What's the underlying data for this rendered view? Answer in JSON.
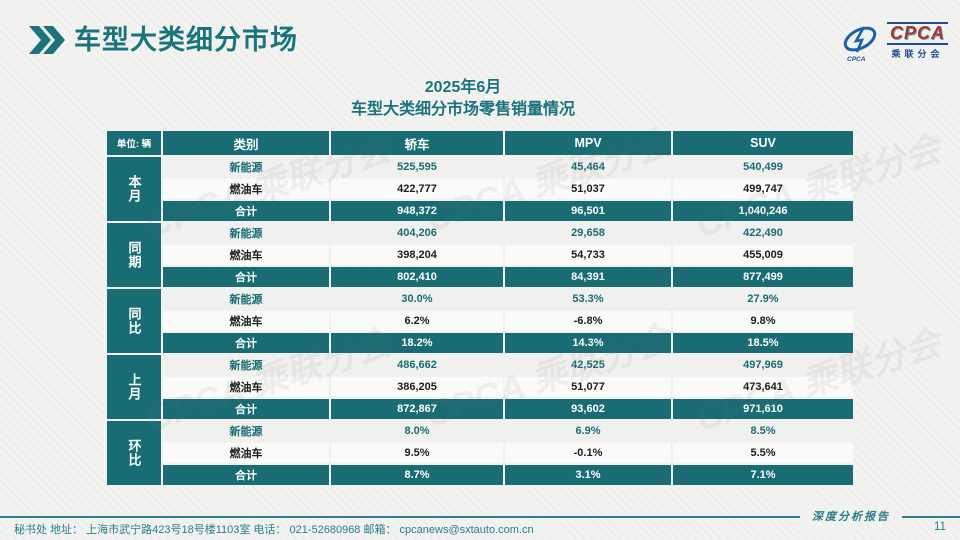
{
  "header": {
    "title": "车型大类细分市场"
  },
  "logo": {
    "acronym": "CPCA",
    "chinese": "乘联分会"
  },
  "subtitle": {
    "line1": "2025年6月",
    "line2": "车型大类细分市场零售销量情况"
  },
  "table": {
    "unit_label": "单位: 辆",
    "columns": [
      "类别",
      "轿车",
      "MPV",
      "SUV"
    ],
    "groups": [
      {
        "label": "本月",
        "rows": [
          {
            "type": "new-energy",
            "cells": [
              "新能源",
              "525,595",
              "45,464",
              "540,499"
            ]
          },
          {
            "type": "fuel",
            "cells": [
              "燃油车",
              "422,777",
              "51,037",
              "499,747"
            ]
          },
          {
            "type": "total",
            "cells": [
              "合计",
              "948,372",
              "96,501",
              "1,040,246"
            ]
          }
        ]
      },
      {
        "label": "同期",
        "rows": [
          {
            "type": "new-energy",
            "cells": [
              "新能源",
              "404,206",
              "29,658",
              "422,490"
            ]
          },
          {
            "type": "fuel",
            "cells": [
              "燃油车",
              "398,204",
              "54,733",
              "455,009"
            ]
          },
          {
            "type": "total",
            "cells": [
              "合计",
              "802,410",
              "84,391",
              "877,499"
            ]
          }
        ]
      },
      {
        "label": "同比",
        "rows": [
          {
            "type": "new-energy",
            "cells": [
              "新能源",
              "30.0%",
              "53.3%",
              "27.9%"
            ]
          },
          {
            "type": "fuel",
            "cells": [
              "燃油车",
              "6.2%",
              "-6.8%",
              "9.8%"
            ]
          },
          {
            "type": "total",
            "cells": [
              "合计",
              "18.2%",
              "14.3%",
              "18.5%"
            ]
          }
        ]
      },
      {
        "label": "上月",
        "rows": [
          {
            "type": "new-energy",
            "cells": [
              "新能源",
              "486,662",
              "42,525",
              "497,969"
            ]
          },
          {
            "type": "fuel",
            "cells": [
              "燃油车",
              "386,205",
              "51,077",
              "473,641"
            ]
          },
          {
            "type": "total",
            "cells": [
              "合计",
              "872,867",
              "93,602",
              "971,610"
            ]
          }
        ]
      },
      {
        "label": "环比",
        "rows": [
          {
            "type": "new-energy",
            "cells": [
              "新能源",
              "8.0%",
              "6.9%",
              "8.5%"
            ]
          },
          {
            "type": "fuel",
            "cells": [
              "燃油车",
              "9.5%",
              "-0.1%",
              "5.5%"
            ]
          },
          {
            "type": "total",
            "cells": [
              "合计",
              "8.7%",
              "3.1%",
              "7.1%"
            ]
          }
        ]
      }
    ]
  },
  "watermark": "CPCA 乘联分会",
  "footer": {
    "contact": "秘书处   地址： 上海市武宁路423号18号楼1103室   电话： 021-52680968    邮箱： cpcanews@sxtauto.com.cn",
    "report_label": "深度分析报告",
    "page_number": "11"
  },
  "colors": {
    "accent_teal": "#1a6c74",
    "title_teal": "#1b737c",
    "footer_teal": "#2a7e87",
    "logo_navy": "#1d4f91",
    "logo_red": "#9e3a2b"
  },
  "chart_data": {
    "type": "table",
    "title": "2025年6月 车型大类细分市场零售销量情况",
    "unit": "辆",
    "columns": [
      "轿车",
      "MPV",
      "SUV"
    ],
    "row_groups": [
      "本月",
      "同期",
      "同比",
      "上月",
      "环比"
    ],
    "rows": [
      {
        "group": "本月",
        "category": "新能源",
        "values": [
          525595,
          45464,
          540499
        ]
      },
      {
        "group": "本月",
        "category": "燃油车",
        "values": [
          422777,
          51037,
          499747
        ]
      },
      {
        "group": "本月",
        "category": "合计",
        "values": [
          948372,
          96501,
          1040246
        ]
      },
      {
        "group": "同期",
        "category": "新能源",
        "values": [
          404206,
          29658,
          422490
        ]
      },
      {
        "group": "同期",
        "category": "燃油车",
        "values": [
          398204,
          54733,
          455009
        ]
      },
      {
        "group": "同期",
        "category": "合计",
        "values": [
          802410,
          84391,
          877499
        ]
      },
      {
        "group": "同比",
        "category": "新能源",
        "values": [
          30.0,
          53.3,
          27.9
        ]
      },
      {
        "group": "同比",
        "category": "燃油车",
        "values": [
          6.2,
          -6.8,
          9.8
        ]
      },
      {
        "group": "同比",
        "category": "合计",
        "values": [
          18.2,
          14.3,
          18.5
        ]
      },
      {
        "group": "上月",
        "category": "新能源",
        "values": [
          486662,
          42525,
          497969
        ]
      },
      {
        "group": "上月",
        "category": "燃油车",
        "values": [
          386205,
          51077,
          473641
        ]
      },
      {
        "group": "上月",
        "category": "合计",
        "values": [
          872867,
          93602,
          971610
        ]
      },
      {
        "group": "环比",
        "category": "新能源",
        "values": [
          8.0,
          6.9,
          8.5
        ]
      },
      {
        "group": "环比",
        "category": "燃油车",
        "values": [
          9.5,
          -0.1,
          5.5
        ]
      },
      {
        "group": "环比",
        "category": "合计",
        "values": [
          8.7,
          3.1,
          7.1
        ]
      }
    ]
  }
}
